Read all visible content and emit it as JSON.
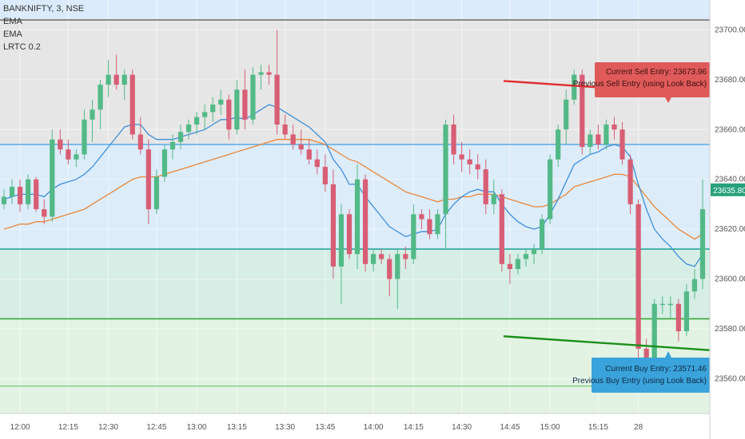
{
  "chart_data": {
    "type": "candlestick",
    "title": "BANKNIFTY, 3, NSE",
    "indicators": [
      "EMA",
      "EMA",
      "LRTC 0.2"
    ],
    "ylim": [
      23546,
      23712
    ],
    "y_ticks": [
      "23700.00",
      "23680.00",
      "23660.00",
      "23640.00",
      "23620.00",
      "23600.00",
      "23580.00",
      "23560.00"
    ],
    "x_ticks": [
      "12:00",
      "12:15",
      "12:30",
      "12:45",
      "13:00",
      "13:15",
      "13:30",
      "13:45",
      "14:00",
      "14:15",
      "14:30",
      "14:45",
      "15:00",
      "15:15",
      "28"
    ],
    "last_price": "23635.80",
    "colors": {
      "up": "#53b987",
      "down": "#d75e74",
      "ema_fast": "#3d8fd6",
      "ema_slow": "#e8873b",
      "sell_line": "#e03030",
      "buy_line": "#1a8f1a",
      "sell_box": "#e05a5a",
      "buy_box": "#3ba3db",
      "last_price_box": "#27a17a"
    },
    "candles": [
      [
        23630,
        23636,
        23628,
        23633
      ],
      [
        23633,
        23640,
        23630,
        23637
      ],
      [
        23637,
        23640,
        23627,
        23630
      ],
      [
        23630,
        23642,
        23628,
        23640
      ],
      [
        23640,
        23641,
        23627,
        23628
      ],
      [
        23628,
        23632,
        23622,
        23625
      ],
      [
        23625,
        23660,
        23623,
        23656
      ],
      [
        23656,
        23660,
        23650,
        23652
      ],
      [
        23652,
        23656,
        23646,
        23648
      ],
      [
        23648,
        23652,
        23645,
        23650
      ],
      [
        23650,
        23668,
        23648,
        23664
      ],
      [
        23664,
        23672,
        23655,
        23668
      ],
      [
        23668,
        23680,
        23660,
        23678
      ],
      [
        23678,
        23688,
        23673,
        23682
      ],
      [
        23682,
        23690,
        23676,
        23678
      ],
      [
        23678,
        23684,
        23672,
        23682
      ],
      [
        23682,
        23684,
        23656,
        23658
      ],
      [
        23658,
        23665,
        23650,
        23652
      ],
      [
        23652,
        23656,
        23622,
        23628
      ],
      [
        23628,
        23644,
        23626,
        23641
      ],
      [
        23641,
        23654,
        23639,
        23652
      ],
      [
        23652,
        23658,
        23648,
        23655
      ],
      [
        23655,
        23662,
        23652,
        23659
      ],
      [
        23659,
        23664,
        23656,
        23662
      ],
      [
        23662,
        23667,
        23658,
        23665
      ],
      [
        23665,
        23670,
        23660,
        23667
      ],
      [
        23667,
        23673,
        23663,
        23670
      ],
      [
        23670,
        23676,
        23666,
        23672
      ],
      [
        23672,
        23674,
        23656,
        23660
      ],
      [
        23660,
        23680,
        23658,
        23676
      ],
      [
        23676,
        23684,
        23660,
        23664
      ],
      [
        23664,
        23685,
        23662,
        23682
      ],
      [
        23682,
        23686,
        23676,
        23683
      ],
      [
        23683,
        23686,
        23678,
        23682
      ],
      [
        23682,
        23700,
        23658,
        23662
      ],
      [
        23662,
        23666,
        23656,
        23658
      ],
      [
        23658,
        23662,
        23652,
        23654
      ],
      [
        23654,
        23660,
        23650,
        23652
      ],
      [
        23652,
        23656,
        23646,
        23648
      ],
      [
        23648,
        23652,
        23642,
        23645
      ],
      [
        23645,
        23650,
        23635,
        23638
      ],
      [
        23638,
        23644,
        23600,
        23605
      ],
      [
        23605,
        23630,
        23590,
        23626
      ],
      [
        23626,
        23628,
        23608,
        23610
      ],
      [
        23610,
        23646,
        23604,
        23640
      ],
      [
        23640,
        23642,
        23603,
        23606
      ],
      [
        23606,
        23612,
        23603,
        23610
      ],
      [
        23610,
        23612,
        23606,
        23608
      ],
      [
        23608,
        23610,
        23593,
        23600
      ],
      [
        23600,
        23612,
        23588,
        23610
      ],
      [
        23610,
        23613,
        23604,
        23608
      ],
      [
        23608,
        23630,
        23606,
        23626
      ],
      [
        23626,
        23628,
        23620,
        23624
      ],
      [
        23624,
        23628,
        23616,
        23618
      ],
      [
        23618,
        23628,
        23616,
        23626
      ],
      [
        23626,
        23664,
        23612,
        23662
      ],
      [
        23662,
        23666,
        23646,
        23650
      ],
      [
        23650,
        23655,
        23643,
        23648
      ],
      [
        23648,
        23652,
        23642,
        23646
      ],
      [
        23646,
        23650,
        23640,
        23644
      ],
      [
        23644,
        23648,
        23626,
        23630
      ],
      [
        23630,
        23640,
        23626,
        23634
      ],
      [
        23634,
        23636,
        23603,
        23606
      ],
      [
        23606,
        23610,
        23598,
        23604
      ],
      [
        23604,
        23610,
        23602,
        23608
      ],
      [
        23608,
        23612,
        23605,
        23610
      ],
      [
        23610,
        23614,
        23606,
        23612
      ],
      [
        23612,
        23626,
        23610,
        23624
      ],
      [
        23624,
        23650,
        23622,
        23648
      ],
      [
        23648,
        23662,
        23645,
        23660
      ],
      [
        23660,
        23676,
        23654,
        23672
      ],
      [
        23672,
        23684,
        23670,
        23682
      ],
      [
        23682,
        23684,
        23650,
        23653
      ],
      [
        23653,
        23660,
        23650,
        23658
      ],
      [
        23658,
        23662,
        23652,
        23654
      ],
      [
        23654,
        23664,
        23652,
        23662
      ],
      [
        23662,
        23665,
        23656,
        23660
      ],
      [
        23660,
        23663,
        23646,
        23648
      ],
      [
        23648,
        23650,
        23626,
        23630
      ],
      [
        23630,
        23632,
        23568,
        23572
      ],
      [
        23572,
        23576,
        23562,
        23565
      ],
      [
        23565,
        23592,
        23563,
        23590
      ],
      [
        23590,
        23593,
        23586,
        23590
      ],
      [
        23590,
        23593,
        23584,
        23590
      ],
      [
        23590,
        23592,
        23575,
        23579
      ],
      [
        23579,
        23598,
        23577,
        23595
      ],
      [
        23595,
        23604,
        23592,
        23600
      ],
      [
        23600,
        23640,
        23596,
        23628
      ]
    ],
    "ema_fast": [
      23632,
      23633,
      23634,
      23634,
      23634,
      23633,
      23636,
      23638,
      23639,
      23640,
      23642,
      23645,
      23649,
      23653,
      23657,
      23661,
      23662,
      23662,
      23658,
      23656,
      23656,
      23656,
      23657,
      23658,
      23659,
      23660,
      23662,
      23664,
      23664,
      23665,
      23664,
      23666,
      23668,
      23670,
      23669,
      23667,
      23665,
      23663,
      23661,
      23658,
      23655,
      23648,
      23644,
      23638,
      23638,
      23633,
      23629,
      23625,
      23621,
      23619,
      23617,
      23618,
      23619,
      23619,
      23620,
      23626,
      23630,
      23633,
      23635,
      23636,
      23635,
      23635,
      23630,
      23626,
      23623,
      23621,
      23620,
      23621,
      23626,
      23632,
      23639,
      23646,
      23648,
      23650,
      23651,
      23653,
      23654,
      23653,
      23649,
      23638,
      23628,
      23620,
      23616,
      23613,
      23609,
      23606,
      23605,
      23610
    ],
    "ema_slow": [
      23620,
      23621,
      23622,
      23622,
      23623,
      23623,
      23624,
      23625,
      23626,
      23627,
      23628,
      23630,
      23632,
      23634,
      23636,
      23638,
      23640,
      23641,
      23641,
      23641,
      23642,
      23643,
      23644,
      23645,
      23646,
      23647,
      23648,
      23649,
      23650,
      23651,
      23652,
      23653,
      23654,
      23655,
      23656,
      23656,
      23656,
      23656,
      23656,
      23655,
      23654,
      23652,
      23650,
      23648,
      23647,
      23645,
      23643,
      23641,
      23639,
      23637,
      23635,
      23634,
      23633,
      23632,
      23631,
      23632,
      23632,
      23633,
      23633,
      23634,
      23634,
      23634,
      23633,
      23632,
      23631,
      23630,
      23629,
      23629,
      23630,
      23632,
      23634,
      23637,
      23638,
      23639,
      23640,
      23641,
      23642,
      23642,
      23641,
      23637,
      23633,
      23629,
      23626,
      23623,
      23620,
      23618,
      23616,
      23618
    ],
    "horizontal_levels": [
      {
        "price": 23704,
        "color": "#8a8a8a"
      },
      {
        "price": 23654,
        "color": "#5aa9e6"
      },
      {
        "price": 23612,
        "color": "#26a69a"
      },
      {
        "price": 23584,
        "color": "#3aa63a"
      },
      {
        "price": 23557,
        "color": "#8fce8f"
      }
    ],
    "sell_entry_label": "Current Sell Entry: 23673.96",
    "sell_prev_label": "Previous Sell Entry (using Look Back)",
    "buy_entry_label": "Current Buy Entry: 23571.46",
    "buy_prev_label": "Previous Buy Entry (using Look Back)"
  }
}
